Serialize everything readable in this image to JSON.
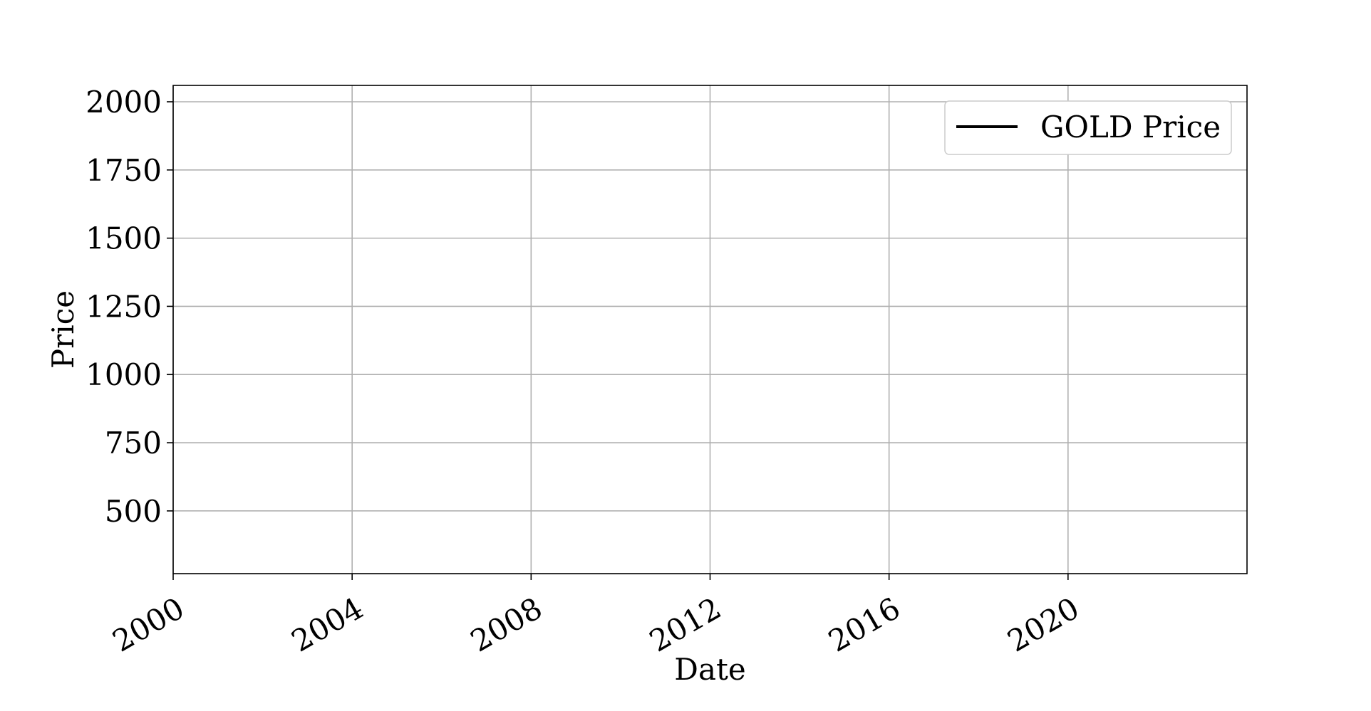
{
  "chart_data": {
    "type": "line",
    "title": "",
    "xlabel": "Date",
    "ylabel": "Price",
    "x_type": "date",
    "xlim": [
      "2000-01-01",
      "2024-01-01"
    ],
    "ylim": [
      270,
      2060
    ],
    "xticks": [
      {
        "value": "2000-01-01",
        "label": "2000"
      },
      {
        "value": "2004-01-01",
        "label": "2004"
      },
      {
        "value": "2008-01-01",
        "label": "2008"
      },
      {
        "value": "2012-01-01",
        "label": "2012"
      },
      {
        "value": "2016-01-01",
        "label": "2016"
      },
      {
        "value": "2020-01-01",
        "label": "2020"
      }
    ],
    "yticks": [
      {
        "value": 500,
        "label": "500"
      },
      {
        "value": 750,
        "label": "750"
      },
      {
        "value": 1000,
        "label": "1000"
      },
      {
        "value": 1250,
        "label": "1250"
      },
      {
        "value": 1500,
        "label": "1500"
      },
      {
        "value": 1750,
        "label": "1750"
      },
      {
        "value": 2000,
        "label": "2000"
      }
    ],
    "grid": true,
    "legend": {
      "position": "top-right",
      "entries": [
        {
          "label": "GOLD Price",
          "color": "#000000"
        }
      ]
    },
    "series": [
      {
        "name": "GOLD Price",
        "color": "#000000",
        "x": [],
        "y": []
      }
    ]
  }
}
